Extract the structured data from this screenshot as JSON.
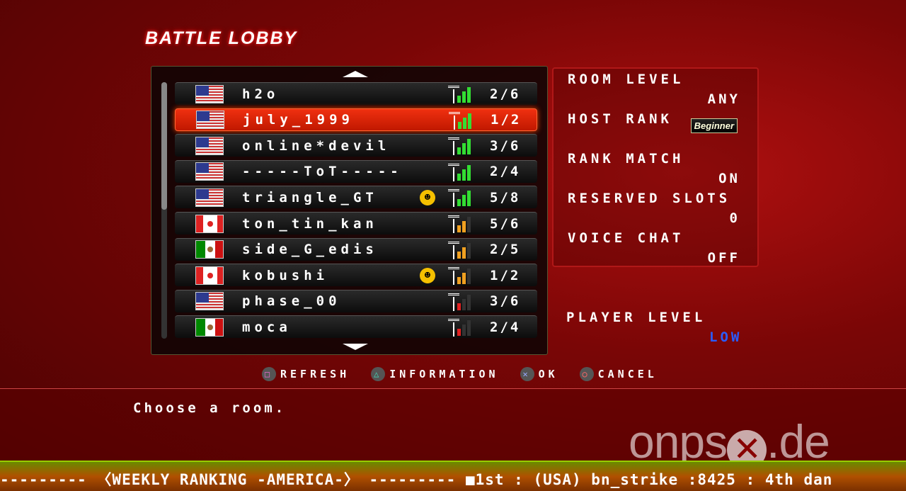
{
  "title": "BATTLE LOBBY",
  "rooms": [
    {
      "name": "h2o",
      "flag": "us",
      "smiley": false,
      "signal": 3,
      "count": "2/6",
      "selected": false
    },
    {
      "name": "july_1999",
      "flag": "us",
      "smiley": false,
      "signal": 3,
      "count": "1/2",
      "selected": true
    },
    {
      "name": "online*devil",
      "flag": "us",
      "smiley": false,
      "signal": 3,
      "count": "3/6",
      "selected": false
    },
    {
      "name": "-----ToT-----",
      "flag": "us",
      "smiley": false,
      "signal": 3,
      "count": "2/4",
      "selected": false
    },
    {
      "name": "triangle_GT",
      "flag": "us",
      "smiley": true,
      "signal": 3,
      "count": "5/8",
      "selected": false
    },
    {
      "name": "ton_tin_kan",
      "flag": "ca",
      "smiley": false,
      "signal": 2,
      "count": "5/6",
      "selected": false
    },
    {
      "name": "side_G_edis",
      "flag": "mx",
      "smiley": false,
      "signal": 2,
      "count": "2/5",
      "selected": false
    },
    {
      "name": "kobushi",
      "flag": "ca",
      "smiley": true,
      "signal": 2,
      "count": "1/2",
      "selected": false
    },
    {
      "name": "phase_00",
      "flag": "us",
      "smiley": false,
      "signal": 1,
      "count": "3/6",
      "selected": false
    },
    {
      "name": "moca",
      "flag": "mx",
      "smiley": false,
      "signal": 1,
      "count": "2/4",
      "selected": false
    }
  ],
  "signal_colors": {
    "3": "#33dd33",
    "2": "#f0a020",
    "1": "#e02020"
  },
  "details": {
    "room_level_label": "ROOM LEVEL",
    "room_level": "ANY",
    "host_rank_label": "HOST RANK",
    "host_rank": "Beginner",
    "rank_match_label": "RANK MATCH",
    "rank_match": "ON",
    "reserved_slots_label": "RESERVED SLOTS",
    "reserved_slots": "0",
    "voice_chat_label": "VOICE CHAT",
    "voice_chat": "OFF"
  },
  "player_level_label": "PLAYER LEVEL",
  "player_level": "LOW",
  "buttons": {
    "refresh": "REFRESH",
    "information": "INFORMATION",
    "ok": "OK",
    "cancel": "CANCEL"
  },
  "message": "Choose a room.",
  "watermark": "onpsx.de",
  "ticker": "--------- 〈WEEKLY RANKING -AMERICA-〉 --------- ■1st : (USA) bn_strike :8425 : 4th dan"
}
